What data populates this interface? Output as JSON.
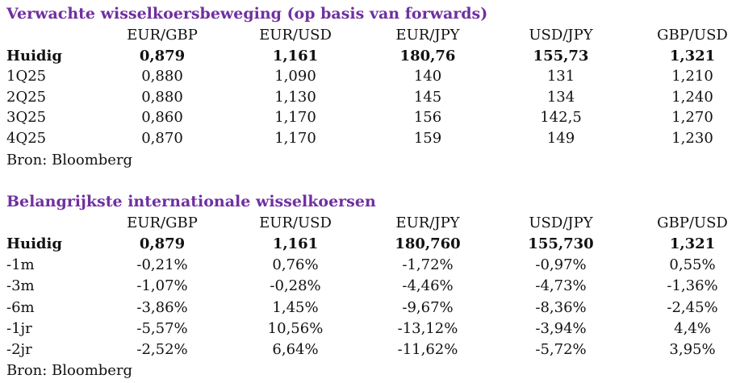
{
  "section1": {
    "title": "Verwachte wisselkoersbeweging (op basis van forwards)",
    "headers": [
      "EUR/GBP",
      "EUR/USD",
      "EUR/JPY",
      "USD/JPY",
      "GBP/USD"
    ],
    "rows": [
      {
        "label": "Huidig",
        "values": [
          "0,879",
          "1,161",
          "180,76",
          "155,73",
          "1,321"
        ]
      },
      {
        "label": "1Q25",
        "values": [
          "0,880",
          "1,090",
          "140",
          "131",
          "1,210"
        ]
      },
      {
        "label": "2Q25",
        "values": [
          "0,880",
          "1,130",
          "145",
          "134",
          "1,240"
        ]
      },
      {
        "label": "3Q25",
        "values": [
          "0,860",
          "1,170",
          "156",
          "142,5",
          "1,270"
        ]
      },
      {
        "label": "4Q25",
        "values": [
          "0,870",
          "1,170",
          "159",
          "149",
          "1,230"
        ]
      }
    ],
    "source": "Bron: Bloomberg"
  },
  "section2": {
    "title": "Belangrijkste internationale wisselkoersen",
    "headers": [
      "EUR/GBP",
      "EUR/USD",
      "EUR/JPY",
      "USD/JPY",
      "GBP/USD"
    ],
    "rows": [
      {
        "label": "Huidig",
        "values": [
          "0,879",
          "1,161",
          "180,760",
          "155,730",
          "1,321"
        ]
      },
      {
        "label": "-1m",
        "values": [
          "-0,21%",
          "0,76%",
          "-1,72%",
          "-0,97%",
          "0,55%"
        ]
      },
      {
        "label": "-3m",
        "values": [
          "-1,07%",
          "-0,28%",
          "-4,46%",
          "-4,73%",
          "-1,36%"
        ]
      },
      {
        "label": "-6m",
        "values": [
          "-3,86%",
          "1,45%",
          "-9,67%",
          "-8,36%",
          "-2,45%"
        ]
      },
      {
        "label": "-1jr",
        "values": [
          "-5,57%",
          "10,56%",
          "-13,12%",
          "-3,94%",
          "4,4%"
        ]
      },
      {
        "label": "-2jr",
        "values": [
          "-2,52%",
          "6,64%",
          "-11,62%",
          "-5,72%",
          "3,95%"
        ]
      }
    ],
    "source": "Bron: Bloomberg"
  },
  "colors": {
    "title": "#7030a0",
    "text": "#111111"
  }
}
